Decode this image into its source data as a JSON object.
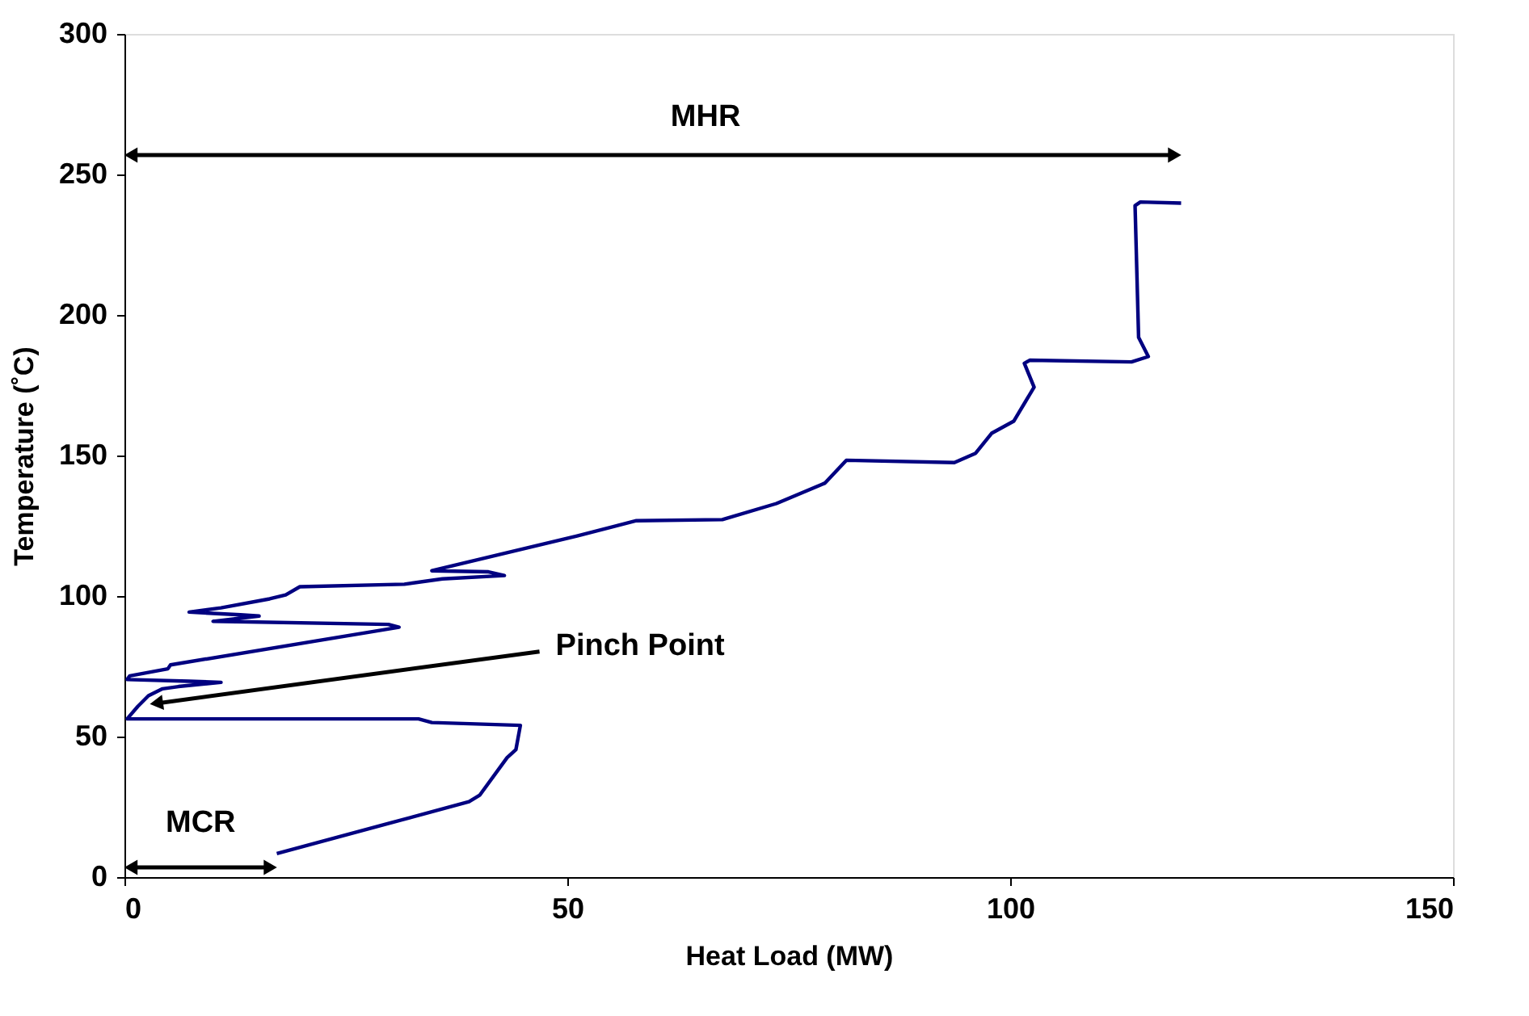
{
  "chart_data": {
    "type": "line",
    "xlabel": "Heat Load (MW)",
    "ylabel": "Temperature (˚C)",
    "xlim": [
      0,
      150
    ],
    "xticks": [
      0,
      50,
      100,
      150
    ],
    "ylim": [
      0,
      300
    ],
    "yticks": [
      0,
      50,
      100,
      150,
      200,
      250,
      300
    ],
    "grid": false,
    "marker": "none",
    "line_style": "solid",
    "series": [
      {
        "color": "#000080",
        "x": [
          17.2,
          38.9,
          40.1,
          43.2,
          44.2,
          44.7,
          34.7,
          33.2,
          0.3,
          1.5,
          2.7,
          4.3,
          6.1,
          10.9,
          7.3,
          0.3,
          0.6,
          4.9,
          5.2,
          31.0,
          29.8,
          10.0,
          15.2,
          13.1,
          7.3,
          10.9,
          16.4,
          18.2,
          19.8,
          31.6,
          35.9,
          42.9,
          41.1,
          34.7,
          51.1,
          57.8,
          67.5,
          73.6,
          79.1,
          81.5,
          93.7,
          96.1,
          97.9,
          100.4,
          102.7,
          101.6,
          102.2,
          113.7,
          115.6,
          114.5,
          114.1,
          114.7,
          119.3
        ],
        "values": [
          8.4,
          26.8,
          29.1,
          42.5,
          45.4,
          54.0,
          55.0,
          56.3,
          56.3,
          60.7,
          64.5,
          67.0,
          67.8,
          69.3,
          69.7,
          70.3,
          71.6,
          74.1,
          75.5,
          88.9,
          89.9,
          91.0,
          92.9,
          93.3,
          94.3,
          95.8,
          99.0,
          100.4,
          103.3,
          104.2,
          106.1,
          107.3,
          108.6,
          109.0,
          121.4,
          126.8,
          127.2,
          132.9,
          140.2,
          148.3,
          147.5,
          150.8,
          157.9,
          162.2,
          174.3,
          182.8,
          183.9,
          183.3,
          185.2,
          192.0,
          238.9,
          240.2,
          239.8
        ]
      }
    ],
    "annotations": [
      "MHR",
      {
        "text": "Pinch Point",
        "x": 2.7,
        "y": 61.3
      },
      "MCR"
    ]
  }
}
